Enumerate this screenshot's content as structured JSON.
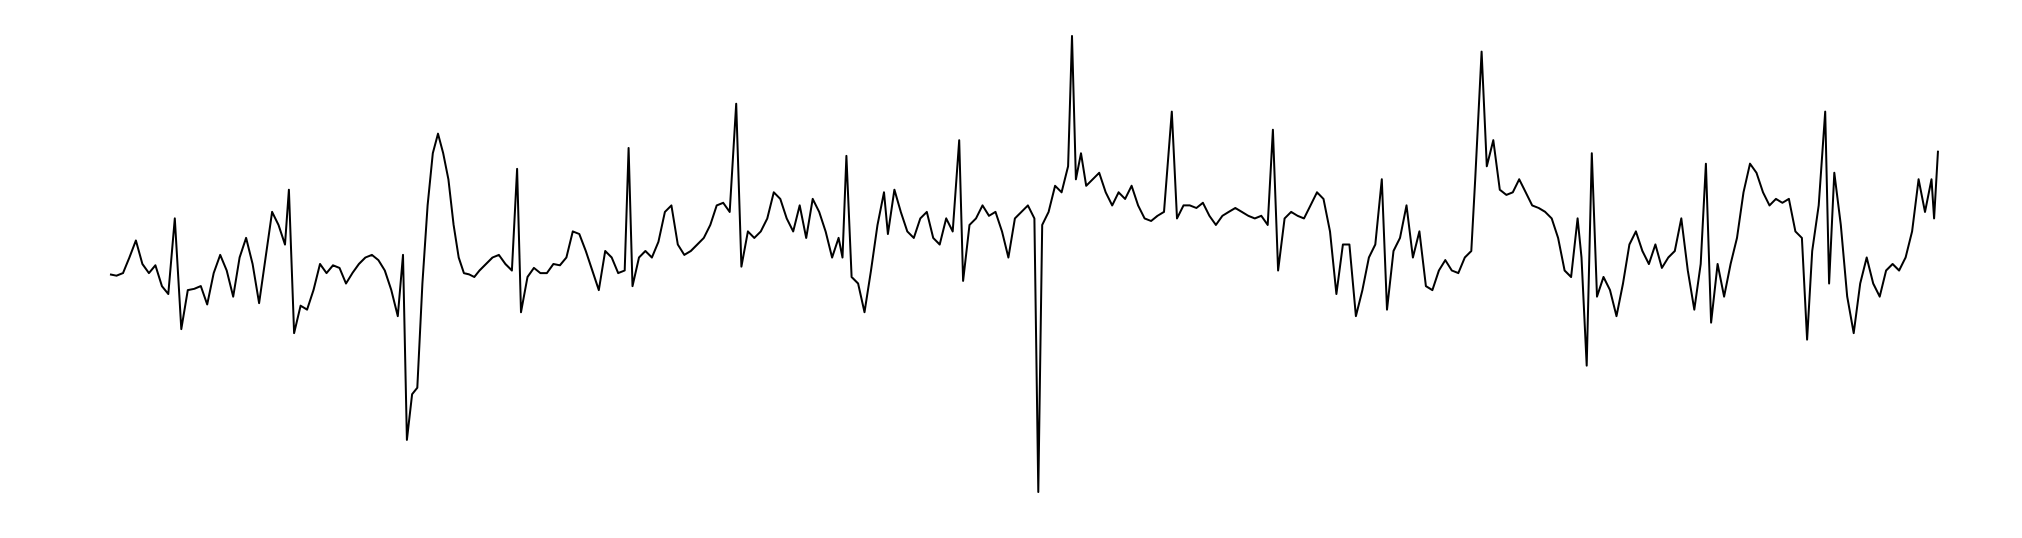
{
  "chart_data": {
    "type": "line",
    "color": "#000000",
    "x": [
      85,
      90,
      95,
      100,
      105,
      110,
      115,
      120,
      125,
      130,
      135,
      140,
      145,
      150,
      155,
      160,
      165,
      170,
      175,
      180,
      185,
      190,
      195,
      200,
      205,
      210,
      215,
      220,
      223,
      227,
      232,
      237,
      242,
      247,
      252,
      257,
      262,
      267,
      272,
      277,
      282,
      287,
      292,
      297,
      302,
      307,
      311,
      314,
      318,
      322,
      326,
      330,
      334,
      338,
      342,
      346,
      350,
      354,
      358,
      362,
      366,
      370,
      375,
      380,
      385,
      390,
      395,
      399,
      402,
      407,
      412,
      417,
      422,
      427,
      432,
      437,
      442,
      447,
      452,
      457,
      462,
      467,
      472,
      477,
      482,
      485,
      488,
      493,
      498,
      503,
      508,
      513,
      518,
      523,
      528,
      533,
      538,
      543,
      548,
      553,
      558,
      563,
      568,
      572,
      577,
      582,
      587,
      592,
      597,
      602,
      607,
      612,
      617,
      622,
      627,
      632,
      637,
      642,
      647,
      650,
      653,
      657,
      662,
      667,
      672,
      677,
      682,
      685,
      690,
      695,
      700,
      705,
      710,
      715,
      720,
      725,
      730,
      735,
      740,
      743,
      748,
      753,
      758,
      763,
      768,
      773,
      778,
      783,
      788,
      793,
      798,
      801,
      804,
      809,
      814,
      819,
      824,
      827,
      830,
      834,
      838,
      843,
      848,
      853,
      858,
      863,
      868,
      873,
      878,
      883,
      888,
      893,
      898,
      904,
      908,
      913,
      918,
      923,
      928,
      933,
      938,
      943,
      948,
      953,
      958,
      963,
      968,
      973,
      978,
      982,
      986,
      991,
      996,
      1001,
      1006,
      1011,
      1016,
      1021,
      1026,
      1031,
      1036,
      1041,
      1046,
      1051,
      1056,
      1061,
      1066,
      1070,
      1075,
      1080,
      1085,
      1090,
      1095,
      1100,
      1105,
      1110,
      1115,
      1120,
      1125,
      1130,
      1135,
      1138,
      1143,
      1147,
      1152,
      1157,
      1162,
      1167,
      1172,
      1177,
      1182,
      1187,
      1192,
      1197,
      1202,
      1207,
      1212,
      1217,
      1220,
      1224,
      1228,
      1232,
      1237,
      1242,
      1247,
      1252,
      1257,
      1262,
      1267,
      1272,
      1277,
      1282,
      1287,
      1292,
      1297,
      1302,
      1307,
      1312,
      1316,
      1320,
      1325,
      1330,
      1335,
      1340,
      1345,
      1350,
      1355,
      1360,
      1365,
      1370,
      1375,
      1380,
      1385,
      1390,
      1394,
      1398,
      1403,
      1408,
      1411,
      1415,
      1420,
      1425,
      1430,
      1435,
      1440,
      1445,
      1450,
      1455,
      1460,
      1465,
      1470,
      1475,
      1480,
      1485,
      1490,
      1492,
      1495
    ],
    "values": [
      -3,
      -4,
      -2,
      10,
      23,
      5,
      -2,
      4,
      -12,
      -18,
      40,
      -45,
      -15,
      -14,
      -12,
      -26,
      -2,
      12,
      0,
      -20,
      10,
      25,
      5,
      -25,
      10,
      45,
      35,
      20,
      62,
      -48,
      -27,
      -30,
      -15,
      5,
      -2,
      4,
      2,
      -10,
      -2,
      5,
      10,
      12,
      8,
      0,
      -15,
      -35,
      12,
      -130,
      -95,
      -90,
      -10,
      50,
      90,
      105,
      90,
      70,
      35,
      10,
      -2,
      -3,
      -5,
      0,
      5,
      10,
      12,
      5,
      0,
      78,
      -32,
      -5,
      2,
      -2,
      -2,
      5,
      4,
      10,
      30,
      28,
      15,
      0,
      -15,
      15,
      10,
      -2,
      0,
      94,
      -12,
      10,
      15,
      10,
      22,
      45,
      50,
      20,
      12,
      15,
      20,
      25,
      35,
      50,
      52,
      45,
      128,
      3,
      30,
      25,
      30,
      40,
      60,
      55,
      40,
      30,
      50,
      25,
      55,
      45,
      30,
      10,
      25,
      10,
      88,
      -5,
      -10,
      -32,
      0,
      35,
      60,
      28,
      62,
      45,
      30,
      25,
      40,
      45,
      25,
      20,
      40,
      30,
      100,
      -8,
      35,
      40,
      50,
      42,
      45,
      30,
      10,
      40,
      45,
      50,
      40,
      -170,
      35,
      45,
      65,
      60,
      80,
      180,
      70,
      90,
      65,
      70,
      75,
      60,
      50,
      60,
      55,
      65,
      50,
      40,
      38,
      42,
      45,
      122,
      40,
      50,
      50,
      48,
      52,
      42,
      35,
      42,
      45,
      48,
      45,
      42,
      40,
      42,
      35,
      108,
      0,
      40,
      45,
      42,
      40,
      50,
      60,
      55,
      30,
      -18,
      20,
      20,
      -35,
      -15,
      10,
      20,
      70,
      -30,
      15,
      25,
      50,
      10,
      30,
      -12,
      -15,
      0,
      8,
      0,
      -2,
      10,
      15,
      70,
      168,
      80,
      100,
      62,
      58,
      60,
      70,
      60,
      50,
      48,
      45,
      40,
      25,
      0,
      -5,
      40,
      10,
      -73,
      90,
      -20,
      -5,
      -15,
      -35,
      -10,
      20,
      30,
      15,
      5,
      20,
      2,
      10,
      15,
      40,
      0,
      -30,
      5,
      82,
      -40,
      5,
      -20,
      5,
      25,
      60,
      82,
      75,
      60,
      50,
      55,
      52,
      55,
      30,
      25,
      -53,
      15,
      50,
      122,
      -10,
      75,
      35,
      -20,
      -48,
      -10,
      10,
      -10,
      -20,
      0,
      5,
      0,
      10,
      30,
      70,
      45,
      70,
      40,
      92
    ]
  }
}
